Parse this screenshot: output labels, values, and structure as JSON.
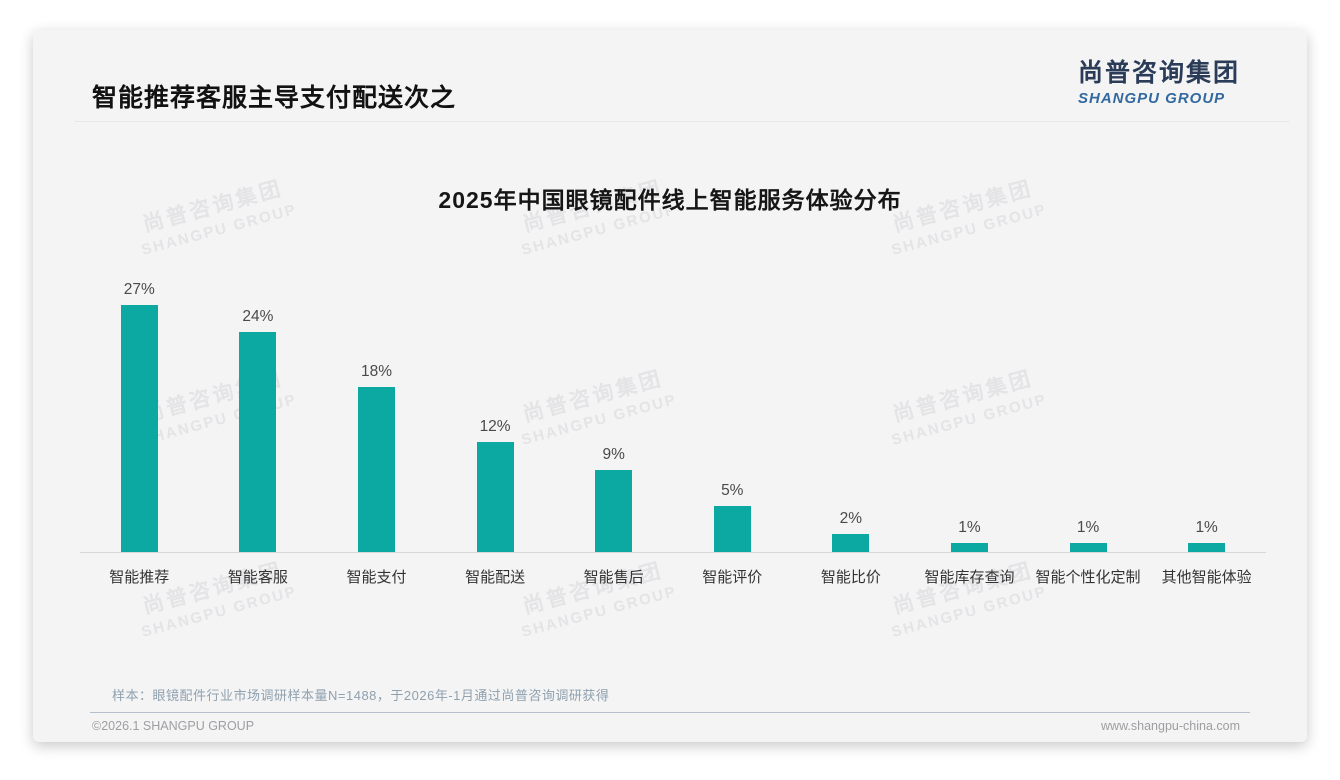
{
  "header": {
    "title": "智能推荐客服主导支付配送次之"
  },
  "logo": {
    "name_cn": "尚普咨询集团",
    "name_en": "SHANGPU GROUP"
  },
  "watermark": {
    "line1": "尚普咨询集团",
    "line2": "SHANGPU GROUP"
  },
  "chart_data": {
    "type": "bar",
    "title": "2025年中国眼镜配件线上智能服务体验分布",
    "categories": [
      "智能推荐",
      "智能客服",
      "智能支付",
      "智能配送",
      "智能售后",
      "智能评价",
      "智能比价",
      "智能库存查询",
      "智能个性化定制",
      "其他智能体验"
    ],
    "values": [
      27,
      24,
      18,
      12,
      9,
      5,
      2,
      1,
      1,
      1
    ],
    "unit": "%",
    "title_position": "top-center",
    "value_labels": true,
    "grid": false,
    "legend": false,
    "ylim": [
      0,
      30
    ],
    "bar_color": "#0ba9a1",
    "value_label_color": "#4a4a4a",
    "axis_color": "#d8d8d9"
  },
  "note": "样本：眼镜配件行业市场调研样本量N=1488，于2026年-1月通过尚普咨询调研获得",
  "footer": {
    "left": "©2026.1 SHANGPU GROUP",
    "right": "www.shangpu-china.com"
  }
}
